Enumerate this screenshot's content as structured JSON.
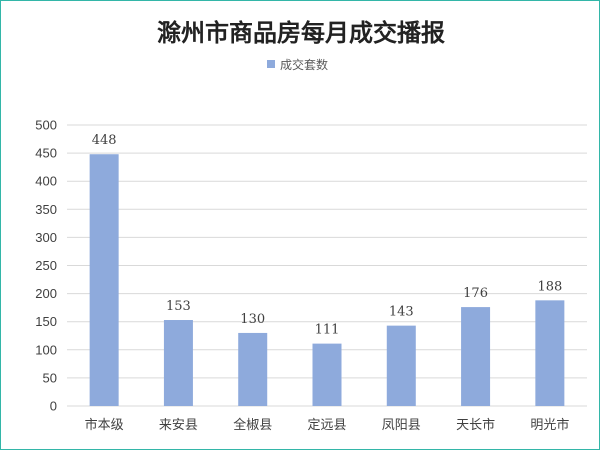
{
  "chart_data": {
    "type": "bar",
    "title": "滁州市商品房每月成交播报",
    "categories": [
      "市本级",
      "来安县",
      "全椒县",
      "定远县",
      "凤阳县",
      "天长市",
      "明光市"
    ],
    "series": [
      {
        "name": "成交套数",
        "values": [
          448,
          153,
          130,
          111,
          143,
          176,
          188
        ]
      }
    ],
    "ylim": [
      0,
      500
    ],
    "yticks": [
      0,
      50,
      100,
      150,
      200,
      250,
      300,
      350,
      400,
      450,
      500
    ],
    "grid": true,
    "legend": "top-center",
    "data_labels": true,
    "bar_color": "#8eaadc",
    "grid_color": "#d9d9d9",
    "border_color": "#33b6a8"
  }
}
